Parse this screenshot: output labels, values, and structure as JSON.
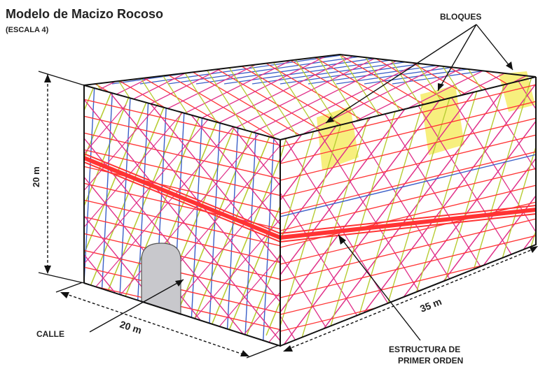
{
  "title": "Modelo de Macizo Rocoso",
  "subtitle": "(ESCALA 4)",
  "labels": {
    "blocks": "BLOQUES",
    "height": "20 m",
    "width": "20 m",
    "length": "35 m",
    "street": "CALLE",
    "structure_line1": "ESTRUCTURA DE",
    "structure_line2": "PRIMER ORDEN"
  },
  "colors": {
    "red_joints": "#ff3333",
    "magenta_joints": "#e0308a",
    "green_joints": "#b7cc33",
    "blue_joints": "#3b5fc8",
    "blocks_fill": "#f7ef7e",
    "tunnel_fill": "#c8c8cc",
    "outline": "#111111"
  }
}
